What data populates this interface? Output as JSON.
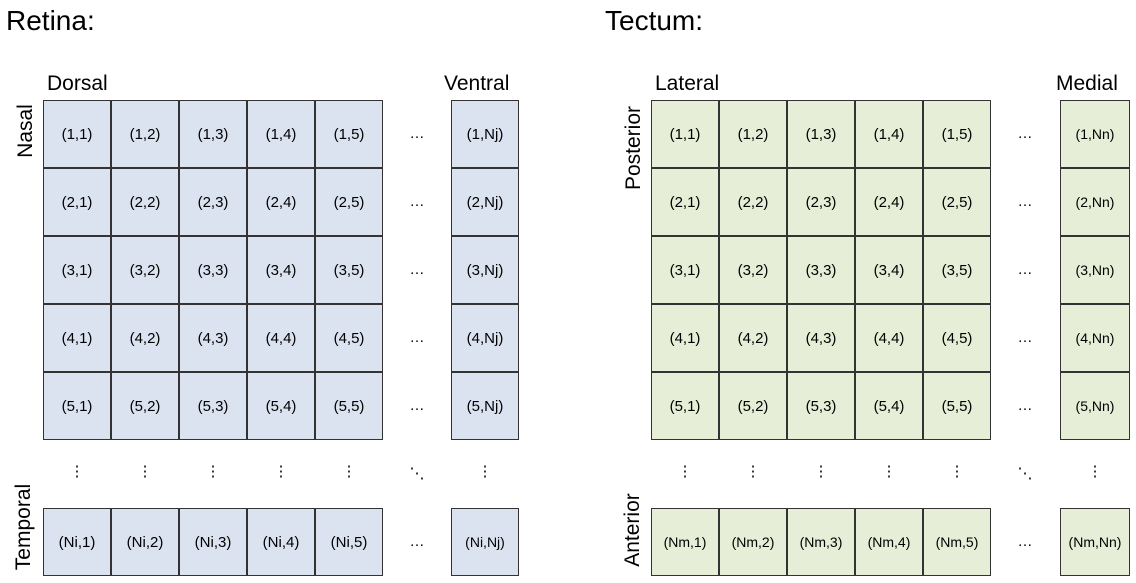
{
  "panels": [
    {
      "id": "retina",
      "title": "Retina:",
      "top_left_label": "Dorsal",
      "top_right_label": "Ventral",
      "side_top_label": "Nasal",
      "side_bottom_label": "Temporal",
      "rows": [
        [
          "(1,1)",
          "(1,2)",
          "(1,3)",
          "(1,4)",
          "(1,5)",
          "(1,Nj)"
        ],
        [
          "(2,1)",
          "(2,2)",
          "(2,3)",
          "(2,4)",
          "(2,5)",
          "(2,Nj)"
        ],
        [
          "(3,1)",
          "(3,2)",
          "(3,3)",
          "(3,4)",
          "(3,5)",
          "(3,Nj)"
        ],
        [
          "(4,1)",
          "(4,2)",
          "(4,3)",
          "(4,4)",
          "(4,5)",
          "(4,Nj)"
        ],
        [
          "(5,1)",
          "(5,2)",
          "(5,3)",
          "(5,4)",
          "(5,5)",
          "(5,Nj)"
        ]
      ],
      "last_row": [
        "(Ni,1)",
        "(Ni,2)",
        "(Ni,3)",
        "(Ni,4)",
        "(Ni,5)",
        "(Ni,Nj)"
      ],
      "ellipsis": "…"
    },
    {
      "id": "tectum",
      "title": "Tectum:",
      "top_left_label": "Lateral",
      "top_right_label": "Medial",
      "side_top_label": "Posterior",
      "side_bottom_label": "Anterior",
      "rows": [
        [
          "(1,1)",
          "(1,2)",
          "(1,3)",
          "(1,4)",
          "(1,5)",
          "(1,Nn)"
        ],
        [
          "(2,1)",
          "(2,2)",
          "(2,3)",
          "(2,4)",
          "(2,5)",
          "(2,Nn)"
        ],
        [
          "(3,1)",
          "(3,2)",
          "(3,3)",
          "(3,4)",
          "(3,5)",
          "(3,Nn)"
        ],
        [
          "(4,1)",
          "(4,2)",
          "(4,3)",
          "(4,4)",
          "(4,5)",
          "(4,Nn)"
        ],
        [
          "(5,1)",
          "(5,2)",
          "(5,3)",
          "(5,4)",
          "(5,5)",
          "(5,Nn)"
        ]
      ],
      "last_row": [
        "(Nm,1)",
        "(Nm,2)",
        "(Nm,3)",
        "(Nm,4)",
        "(Nm,5)",
        "(Nm,Nn)"
      ],
      "ellipsis": "…"
    }
  ]
}
